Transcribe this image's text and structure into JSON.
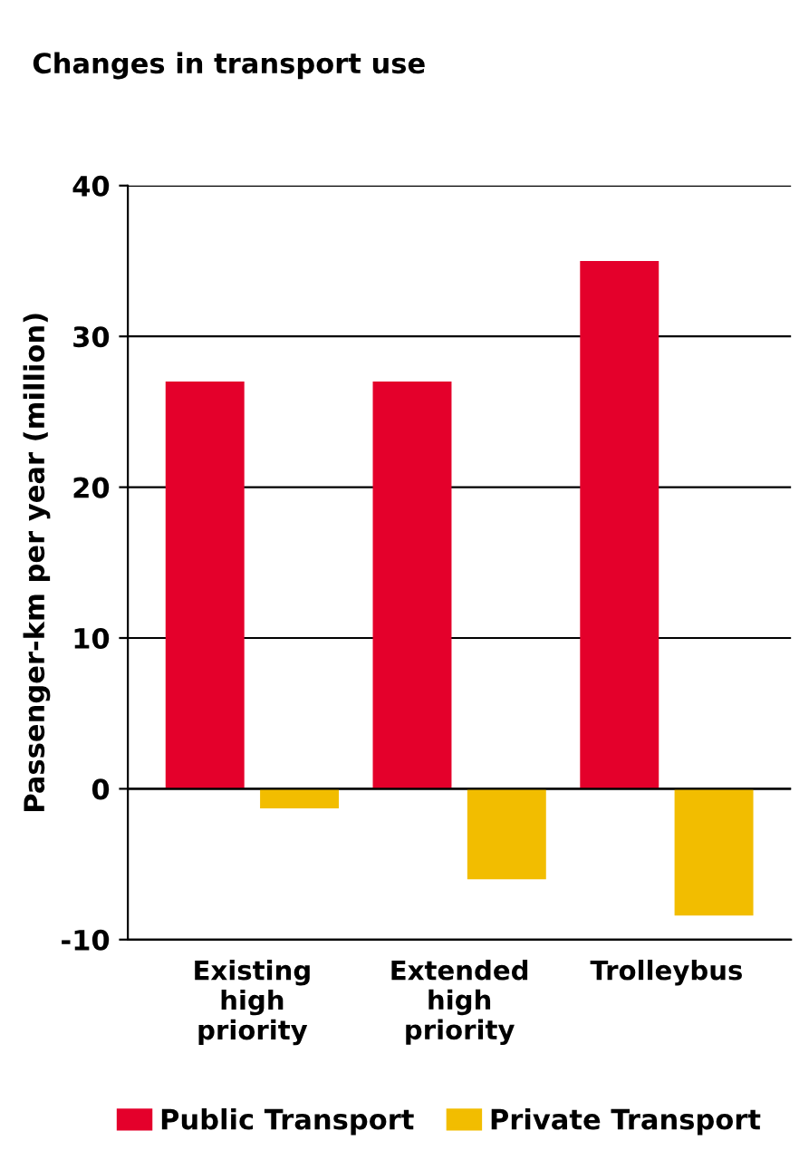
{
  "chart_data": {
    "type": "bar",
    "title": "Changes in transport use",
    "ylabel": "Passenger-km per year (million)",
    "categories": [
      "Existing\nhigh\npriority",
      "Extended\nhigh\npriority",
      "Trolleybus"
    ],
    "series": [
      {
        "name": "Public Transport",
        "color": "#e4002b",
        "values": [
          27,
          27,
          35
        ]
      },
      {
        "name": "Private Transport",
        "color": "#f2bd00",
        "values": [
          -1.3,
          -6,
          -8.4
        ]
      }
    ],
    "ylim": [
      -10,
      40
    ],
    "yticks": [
      -10,
      0,
      10,
      20,
      30,
      40
    ],
    "grid": "y",
    "legend": "bottom"
  }
}
